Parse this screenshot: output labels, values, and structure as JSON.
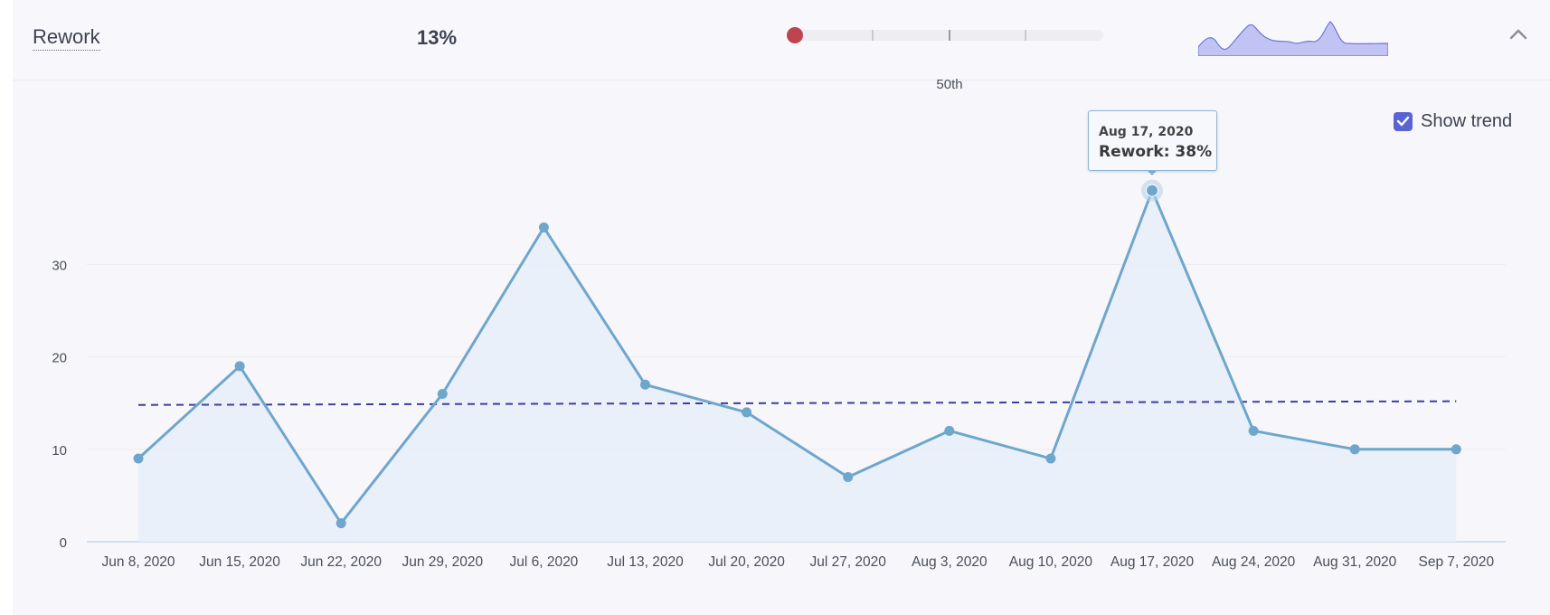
{
  "header": {
    "metric_name": "Rework",
    "metric_value": "13%",
    "benchmark": {
      "label": "50th",
      "position": 0.0,
      "dot_color": "#c0444f",
      "label_position": 0.5
    },
    "sparkline_color": "#8e91e6",
    "collapse_icon": "chevron-up-icon"
  },
  "trend_toggle": {
    "label": "Show trend",
    "checked": true,
    "icon": "checkbox-checked-icon"
  },
  "tooltip": {
    "date": "Aug 17, 2020",
    "value_text": "Rework: 38%"
  },
  "chart_data": {
    "type": "area",
    "categories": [
      "Jun 8, 2020",
      "Jun 15, 2020",
      "Jun 22, 2020",
      "Jun 29, 2020",
      "Jul 6, 2020",
      "Jul 13, 2020",
      "Jul 20, 2020",
      "Jul 27, 2020",
      "Aug 3, 2020",
      "Aug 10, 2020",
      "Aug 17, 2020",
      "Aug 24, 2020",
      "Aug 31, 2020",
      "Sep 7, 2020"
    ],
    "values": [
      9,
      19,
      2,
      16,
      34,
      17,
      14,
      7,
      12,
      9,
      38,
      12,
      10,
      10
    ],
    "trend": [
      14.8,
      15.2
    ],
    "y_ticks": [
      0,
      10,
      20,
      30
    ],
    "ylim": [
      0,
      40
    ],
    "grid": true,
    "highlighted_index": 10,
    "colors": {
      "line": "#6ea6cc",
      "fill": "#e7eef8",
      "trend": "#3c3f9e",
      "grid": "#ebebf1",
      "axis": "#c9d7ea"
    }
  }
}
